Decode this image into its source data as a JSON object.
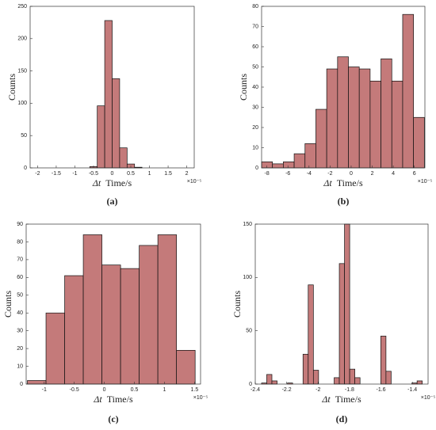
{
  "chart_data": [
    {
      "type": "histogram",
      "caption": "(a)",
      "ylabel": "Counts",
      "xlabel_symbol": "Δt",
      "xlabel": "Time/s",
      "x_multiplier": "×10⁻⁵",
      "bins": [
        -0.6,
        -0.4,
        -0.2,
        0,
        0.2,
        0.4,
        0.6,
        0.8
      ],
      "counts": [
        2,
        96,
        228,
        138,
        31,
        6,
        1
      ],
      "color": "#c47a7a",
      "xlim": [
        -2.2,
        2.2
      ],
      "xticks": [
        -2,
        -1.5,
        -1,
        -0.5,
        0,
        0.5,
        1,
        1.5,
        2
      ],
      "ylim": [
        0,
        250
      ],
      "yticks": [
        0,
        50,
        100,
        150,
        200,
        250
      ]
    },
    {
      "type": "histogram",
      "caption": "(b)",
      "ylabel": "Counts",
      "xlabel_symbol": "Δt",
      "xlabel": "Time/s",
      "x_multiplier": "×10⁻⁵",
      "bins": [
        -8.5,
        -7.47,
        -6.44,
        -5.41,
        -4.38,
        -3.35,
        -2.32,
        -1.29,
        -0.26,
        0.77,
        1.8,
        2.83,
        3.86,
        4.89,
        5.92,
        6.95
      ],
      "counts": [
        3,
        2,
        3,
        7,
        12,
        29,
        49,
        55,
        50,
        49,
        43,
        54,
        43,
        76,
        25
      ],
      "color": "#c47a7a",
      "xlim": [
        -8.5,
        7
      ],
      "xticks": [
        -8,
        -6,
        -4,
        -2,
        0,
        2,
        4,
        6
      ],
      "ylim": [
        0,
        80
      ],
      "yticks": [
        0,
        10,
        20,
        30,
        40,
        50,
        60,
        70,
        80
      ]
    },
    {
      "type": "histogram",
      "caption": "(c)",
      "ylabel": "Counts",
      "xlabel_symbol": "Δt",
      "xlabel": "Time/s",
      "x_multiplier": "×10⁻⁵",
      "bins": [
        -1.28,
        -0.97,
        -0.66,
        -0.35,
        -0.04,
        0.27,
        0.58,
        0.89,
        1.2,
        1.51
      ],
      "counts": [
        2,
        40,
        61,
        84,
        67,
        65,
        78,
        84,
        19
      ],
      "color": "#c47a7a",
      "xlim": [
        -1.3,
        1.6
      ],
      "xticks": [
        -1,
        -0.5,
        0,
        0.5,
        1,
        1.5
      ],
      "ylim": [
        0,
        90
      ],
      "yticks": [
        0,
        10,
        20,
        30,
        40,
        50,
        60,
        70,
        80,
        90
      ]
    },
    {
      "type": "histogram",
      "caption": "(d)",
      "ylabel": "Counts",
      "xlabel_symbol": "Δt",
      "xlabel": "Time/s",
      "x_multiplier": "×10⁻⁵",
      "bins": [
        -2.36,
        -2.327,
        -2.294,
        -2.261,
        -2.228,
        -2.195,
        -2.162,
        -2.129,
        -2.096,
        -2.063,
        -2.03,
        -1.997,
        -1.964,
        -1.931,
        -1.898,
        -1.865,
        -1.832,
        -1.799,
        -1.766,
        -1.733,
        -1.7,
        -1.667,
        -1.634,
        -1.601,
        -1.568,
        -1.535,
        -1.502,
        -1.469,
        -1.436,
        -1.403,
        -1.37,
        -1.337
      ],
      "counts": [
        1,
        9,
        3,
        0,
        0,
        1,
        0,
        0,
        28,
        93,
        13,
        0,
        0,
        0,
        6,
        113,
        150,
        14,
        6,
        0,
        0,
        0,
        0,
        45,
        12,
        0,
        0,
        0,
        0,
        1,
        3
      ],
      "color": "#c47a7a",
      "xlim": [
        -2.4,
        -1.3
      ],
      "xticks": [
        -2.4,
        -2.2,
        -2,
        -1.8,
        -1.6,
        -1.4
      ],
      "ylim": [
        0,
        150
      ],
      "yticks": [
        0,
        50,
        100,
        150
      ]
    }
  ]
}
